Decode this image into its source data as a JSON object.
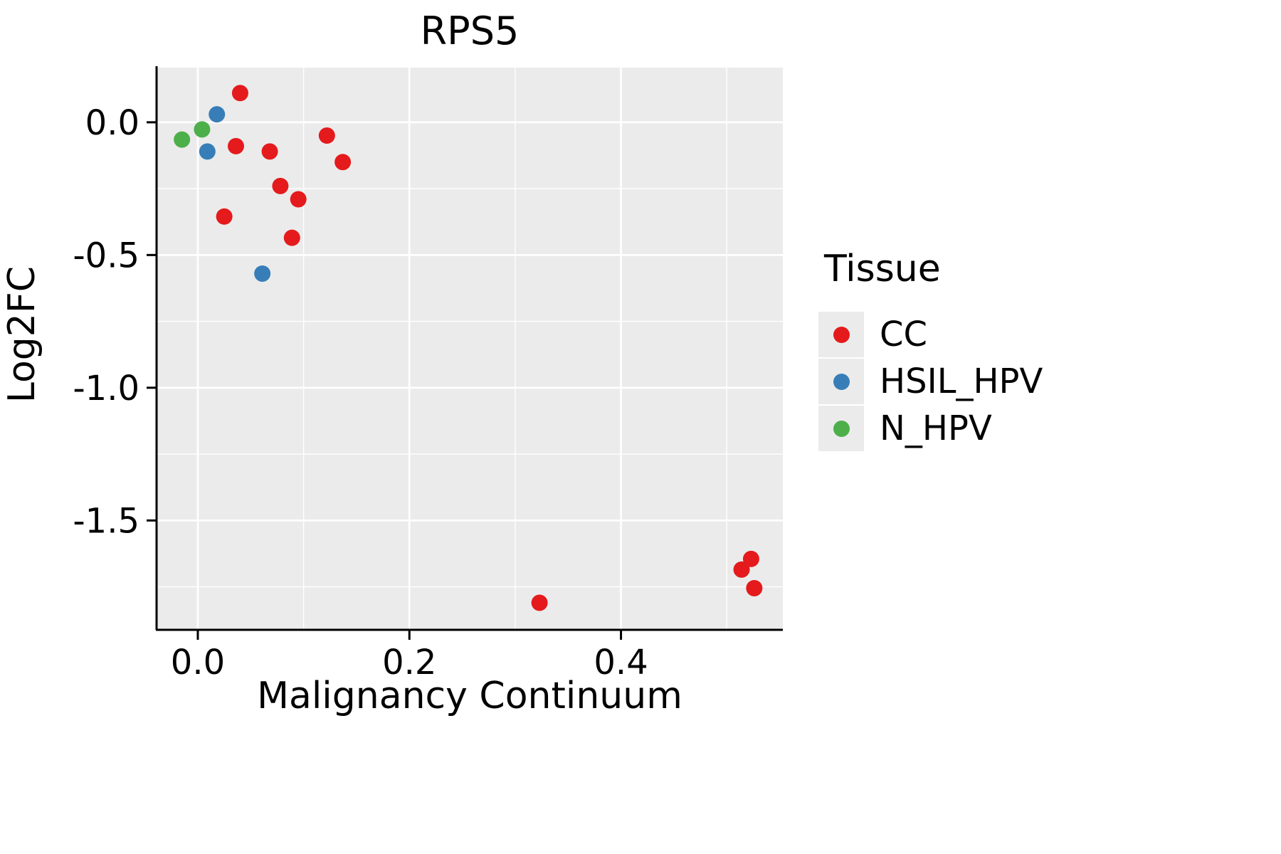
{
  "title": "RPS5",
  "chart_data": {
    "type": "scatter",
    "title": "RPS5",
    "xlabel": "Malignancy Continuum",
    "ylabel": "Log2FC",
    "xlim": [
      -0.039,
      0.553
    ],
    "ylim": [
      -1.912,
      0.206
    ],
    "xticks": [
      0.0,
      0.2,
      0.4
    ],
    "xtick_labels": [
      "0.0",
      "0.2",
      "0.4"
    ],
    "yticks": [
      0.0,
      -0.5,
      -1.0,
      -1.5
    ],
    "ytick_labels": [
      "0.0",
      "-0.5",
      "-1.0",
      "-1.5"
    ],
    "x_minor": [
      0.1,
      0.3,
      0.5
    ],
    "y_minor": [
      -0.25,
      -0.75,
      -1.25,
      -1.75
    ],
    "grid": true,
    "panel_bg": "#EBEBEB",
    "grid_color": "#FFFFFF",
    "legend_title": "Tissue",
    "legend_position": "right",
    "series": [
      {
        "name": "CC",
        "color": "#E41A1C",
        "points": [
          [
            0.04,
            0.11
          ],
          [
            0.036,
            -0.09
          ],
          [
            0.068,
            -0.11
          ],
          [
            0.122,
            -0.05
          ],
          [
            0.137,
            -0.15
          ],
          [
            0.078,
            -0.24
          ],
          [
            0.095,
            -0.29
          ],
          [
            0.025,
            -0.355
          ],
          [
            0.089,
            -0.435
          ],
          [
            0.323,
            -1.81
          ],
          [
            0.514,
            -1.685
          ],
          [
            0.523,
            -1.645
          ],
          [
            0.526,
            -1.755
          ]
        ]
      },
      {
        "name": "HSIL_HPV",
        "color": "#377EB8",
        "points": [
          [
            0.018,
            0.03
          ],
          [
            0.009,
            -0.11
          ],
          [
            0.061,
            -0.57
          ]
        ]
      },
      {
        "name": "N_HPV",
        "color": "#4DAF4A",
        "points": [
          [
            -0.015,
            -0.065
          ],
          [
            0.004,
            -0.027
          ]
        ]
      }
    ]
  }
}
